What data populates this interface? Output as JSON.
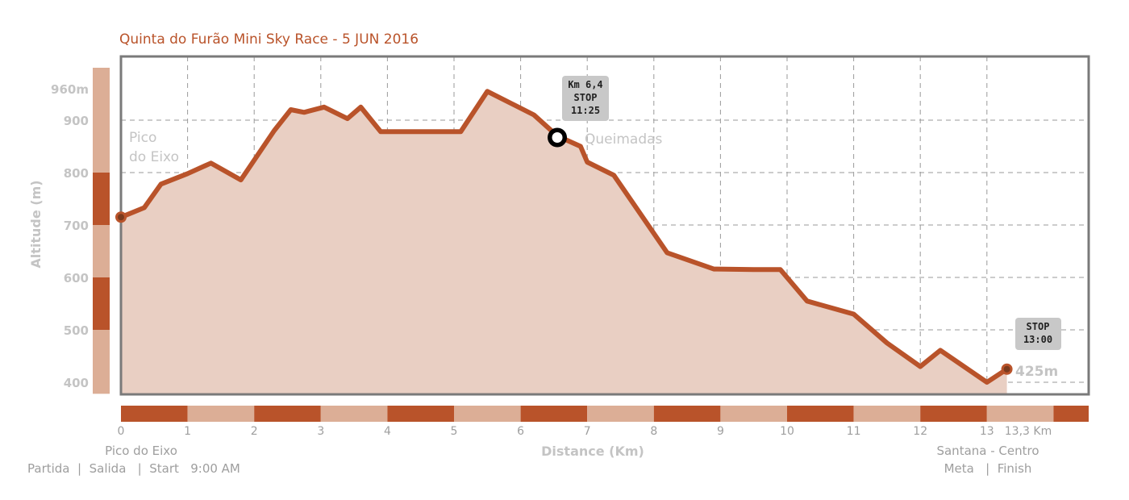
{
  "colors": {
    "accent": "#b9532a",
    "light": "#dcae96",
    "fill": "#e9cfc3",
    "frame": "#7a7a7a",
    "grid": "#9a9a9a",
    "muted": "#c4c4c4",
    "callout": "#c8c8c8"
  },
  "chart_data": {
    "type": "area",
    "title": "Quinta do Furão Mini Sky Race - 5 JUN 2016",
    "xlabel": "Distance (Km)",
    "ylabel": "Altitude (m)",
    "xlim": [
      0,
      14.3
    ],
    "ylim": [
      378,
      1000
    ],
    "grid": true,
    "x_ticks": [
      {
        "value": 0,
        "label": "0"
      },
      {
        "value": 1,
        "label": "1"
      },
      {
        "value": 2,
        "label": "2"
      },
      {
        "value": 3,
        "label": "3"
      },
      {
        "value": 4,
        "label": "4"
      },
      {
        "value": 5,
        "label": "5"
      },
      {
        "value": 6,
        "label": "6"
      },
      {
        "value": 7,
        "label": "7"
      },
      {
        "value": 8,
        "label": "8"
      },
      {
        "value": 9,
        "label": "9"
      },
      {
        "value": 10,
        "label": "10"
      },
      {
        "value": 11,
        "label": "11"
      },
      {
        "value": 12,
        "label": "12"
      },
      {
        "value": 13,
        "label": "13"
      },
      {
        "value": 13.3,
        "label": "13,3 Km"
      }
    ],
    "y_ticks": [
      {
        "value": 400,
        "label": "400"
      },
      {
        "value": 500,
        "label": "500"
      },
      {
        "value": 600,
        "label": "600"
      },
      {
        "value": 700,
        "label": "700"
      },
      {
        "value": 800,
        "label": "800"
      },
      {
        "value": 900,
        "label": "900"
      },
      {
        "value": 960,
        "label": "960m"
      }
    ],
    "series": [
      {
        "x": [
          0,
          0.35,
          0.6,
          1.0,
          1.35,
          1.8,
          2.3,
          2.55,
          2.75,
          3.05,
          3.4,
          3.6,
          3.9,
          4.3,
          5.1,
          5.5,
          6.2,
          6.55,
          6.9,
          7.0,
          7.4,
          8.2,
          8.9,
          9.5,
          9.9,
          10.3,
          11.0,
          11.5,
          12.0,
          12.3,
          13.0,
          13.3
        ],
        "y": [
          715,
          733,
          778,
          798,
          818,
          786,
          880,
          920,
          915,
          925,
          903,
          925,
          878,
          878,
          878,
          955,
          910,
          870,
          850,
          820,
          795,
          647,
          616,
          615,
          615,
          555,
          530,
          475,
          430,
          461,
          400,
          425
        ]
      }
    ],
    "annotations": [
      {
        "x": 6.55,
        "y": 870,
        "label": "Queimadas",
        "callout": [
          "Km 6,4",
          "STOP",
          "11:25"
        ]
      },
      {
        "x": 13.3,
        "y": 425,
        "label": "425m",
        "callout": [
          "STOP",
          "13:00"
        ]
      },
      {
        "x": 0,
        "y": 715,
        "label_lines": [
          "Pico",
          "do Eixo"
        ]
      }
    ]
  },
  "footer": {
    "start_name": "Pico do Eixo",
    "start_detail": "Partida  |  Salida   |  Start   9:00 AM",
    "finish_name": "Santana - Centro",
    "finish_detail": "Meta   |  Finish"
  }
}
